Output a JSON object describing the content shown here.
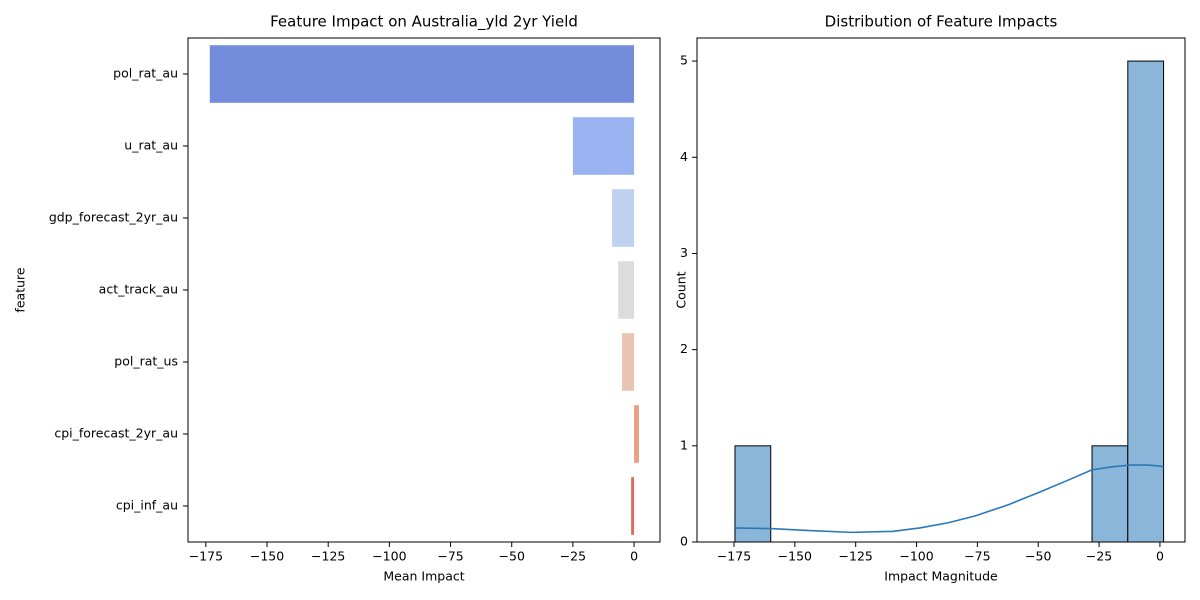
{
  "chart_data": [
    {
      "type": "hbar",
      "title": "Feature Impact on Australia_yld 2yr Yield",
      "x_label": "Mean Impact",
      "y_label": "feature",
      "categories": [
        "pol_rat_au",
        "u_rat_au",
        "gdp_forecast_2yr_au",
        "act_track_au",
        "pol_rat_us",
        "cpi_forecast_2yr_au",
        "cpi_inf_au"
      ],
      "values": [
        -173.4,
        -25,
        -9,
        -6.5,
        -4.9,
        2,
        -1.2
      ],
      "colors": [
        "#748cdc",
        "#9bb3f0",
        "#c0d0ef",
        "#dcdcdc",
        "#eac4b2",
        "#e8a085",
        "#d66e5a"
      ],
      "xlim": [
        -182.3,
        10.6
      ],
      "xticks": [
        {
          "value": -175,
          "label": "−175"
        },
        {
          "value": -150,
          "label": "−150"
        },
        {
          "value": -125,
          "label": "−125"
        },
        {
          "value": -100,
          "label": "−100"
        },
        {
          "value": -75,
          "label": "−75"
        },
        {
          "value": -50,
          "label": "−50"
        },
        {
          "value": -25,
          "label": "−25"
        },
        0
      ]
    },
    {
      "type": "histogram",
      "title": "Distribution of Feature Impacts",
      "x_label": "Impact Magnitude",
      "y_label": "Count",
      "bins": [
        -174.6,
        -159.9,
        -145.3,
        -130.6,
        -115.9,
        -101.2,
        -86.6,
        -71.9,
        -57.2,
        -42.5,
        -27.9,
        -13.2,
        1.5
      ],
      "counts": [
        1,
        0,
        0,
        0,
        0,
        0,
        0,
        0,
        0,
        0,
        1,
        5
      ],
      "color": "#8ab6d9",
      "kde": {
        "color": "#2a78b8",
        "x": [
          -175,
          -160,
          -145,
          -127,
          -110,
          -98.6,
          -87,
          -76,
          -62,
          -49.3,
          -38,
          -28,
          -20,
          -12.3,
          -5,
          0,
          1.5
        ],
        "values": [
          0.146,
          0.14,
          0.12,
          0.1,
          0.11,
          0.146,
          0.2,
          0.27,
          0.39,
          0.52,
          0.64,
          0.75,
          0.78,
          0.8,
          0.8,
          0.79,
          0.78
        ]
      },
      "xlim": [
        -190.2,
        10.3
      ],
      "ylim": [
        0,
        5.24
      ],
      "xticks": [
        {
          "value": -175,
          "label": "−175"
        },
        {
          "value": -150,
          "label": "−150"
        },
        {
          "value": -125,
          "label": "−125"
        },
        {
          "value": -100,
          "label": "−100"
        },
        {
          "value": -75,
          "label": "−75"
        },
        {
          "value": -50,
          "label": "−50"
        },
        {
          "value": -25,
          "label": "−25"
        },
        0
      ],
      "yticks": [
        0,
        1,
        2,
        3,
        4,
        5
      ]
    }
  ]
}
